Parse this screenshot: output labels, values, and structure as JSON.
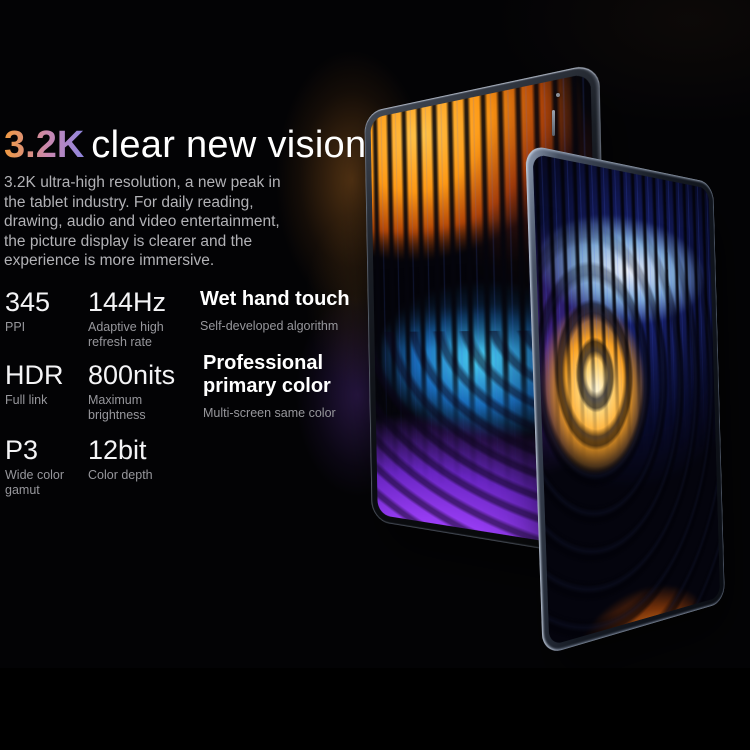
{
  "headline": {
    "highlight": "3.2K",
    "rest": "clear new vision"
  },
  "intro": {
    "body": "3.2K ultra-high resolution, a new peak in\nthe tablet industry. For daily reading,\ndrawing, audio and video entertainment,\nthe picture display is clearer and the\nexperience is more immersive."
  },
  "specs": [
    {
      "value": "345",
      "label": "PPI"
    },
    {
      "value": "144Hz",
      "label": "Adaptive high\nrefresh rate"
    },
    {
      "value": "Wet hand touch",
      "label": "Self-developed algorithm"
    },
    {
      "value": "HDR",
      "label": "Full link"
    },
    {
      "value": "800nits",
      "label": "Maximum\nbrightness"
    },
    {
      "value": "Professional\nprimary color",
      "label": "Multi-screen same color"
    },
    {
      "value": "P3",
      "label": "Wide color\ngamut"
    },
    {
      "value": "12bit",
      "label": "Color depth"
    }
  ],
  "palette": {
    "background": "#030305",
    "headline_gradient": [
      "#f09a40",
      "#c987b0",
      "#8f86e0"
    ],
    "body_text": "#b2b2b6",
    "value_text": "#f4f4f6",
    "label_text": "#97979c",
    "frame_metal": "#8c97a8",
    "back_screen": {
      "top_orange": "#f49a24",
      "mid_cyan": "#3cc0ee",
      "bottom_purple": "#9a44ec"
    },
    "front_screen": {
      "streak_blue": "#3848dc",
      "feather_white": "#f8fbff",
      "warm_core": "#ffd684",
      "bottom_orange": "#e07818"
    },
    "bokeh_amber": "#c47626",
    "bokeh_purple": "#743ec6"
  }
}
